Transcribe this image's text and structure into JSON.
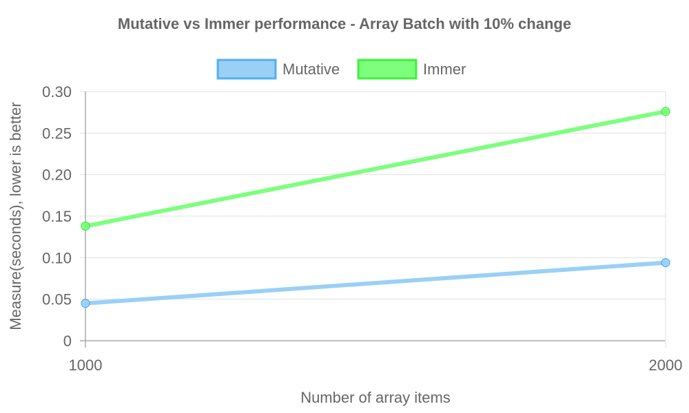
{
  "chart_data": {
    "type": "line",
    "title": "Mutative vs Immer performance - Array Batch with 10% change",
    "xlabel": "Number of array items",
    "ylabel": "Measure(seconds), lower is better",
    "categories": [
      "1000",
      "2000"
    ],
    "ylim": [
      0,
      0.3
    ],
    "yticks": [
      "0",
      "0.05",
      "0.10",
      "0.15",
      "0.20",
      "0.25",
      "0.30"
    ],
    "ytick_values": [
      0,
      0.05,
      0.1,
      0.15,
      0.2,
      0.25,
      0.3
    ],
    "legend_position": "top-center",
    "grid": true,
    "series": [
      {
        "name": "Mutative",
        "values": [
          0.045,
          0.094
        ],
        "color": "#36a2eb",
        "fill": "#9ad0f5"
      },
      {
        "name": "Immer",
        "values": [
          0.138,
          0.276
        ],
        "color": "#22ee22",
        "fill": "#7dff7d"
      }
    ]
  }
}
